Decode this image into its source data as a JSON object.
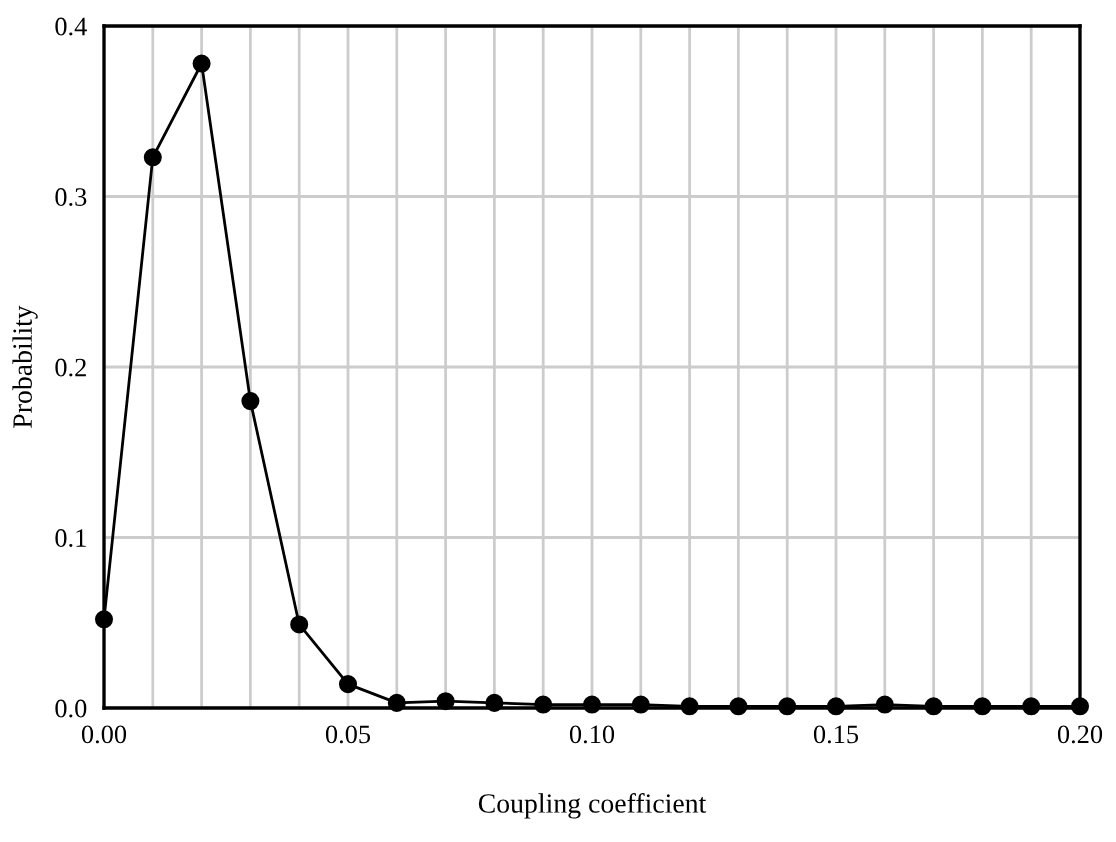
{
  "chart_data": {
    "type": "line",
    "xlabel": "Coupling coefficient",
    "ylabel": "Probability",
    "x": [
      0.0,
      0.01,
      0.02,
      0.03,
      0.04,
      0.05,
      0.06,
      0.07,
      0.08,
      0.09,
      0.1,
      0.11,
      0.12,
      0.13,
      0.14,
      0.15,
      0.16,
      0.17,
      0.18,
      0.19,
      0.2
    ],
    "series": [
      {
        "color": "#000000",
        "values": [
          0.052,
          0.323,
          0.378,
          0.18,
          0.049,
          0.014,
          0.003,
          0.004,
          0.003,
          0.002,
          0.002,
          0.002,
          0.001,
          0.001,
          0.001,
          0.001,
          0.002,
          0.001,
          0.001,
          0.001,
          0.001
        ]
      }
    ],
    "xlim": [
      0,
      0.2
    ],
    "xticks": [
      {
        "value": 0,
        "label": "0.00"
      },
      {
        "value": 0.01,
        "label": null
      },
      {
        "value": 0.02,
        "label": null
      },
      {
        "value": 0.03,
        "label": null
      },
      {
        "value": 0.04,
        "label": null
      },
      {
        "value": 0.05,
        "label": "0.05"
      },
      {
        "value": 0.06,
        "label": null
      },
      {
        "value": 0.07,
        "label": null
      },
      {
        "value": 0.08,
        "label": null
      },
      {
        "value": 0.09,
        "label": null
      },
      {
        "value": 0.1,
        "label": "0.10"
      },
      {
        "value": 0.11,
        "label": null
      },
      {
        "value": 0.12,
        "label": null
      },
      {
        "value": 0.13,
        "label": null
      },
      {
        "value": 0.14,
        "label": null
      },
      {
        "value": 0.15,
        "label": "0.15"
      },
      {
        "value": 0.16,
        "label": null
      },
      {
        "value": 0.17,
        "label": null
      },
      {
        "value": 0.18,
        "label": null
      },
      {
        "value": 0.19,
        "label": null
      },
      {
        "value": 0.2,
        "label": "0.20"
      }
    ],
    "ylim": [
      0,
      0.4
    ],
    "yticks": [
      {
        "value": 0,
        "label": "0.0"
      },
      {
        "value": 0.1,
        "label": "0.1"
      },
      {
        "value": 0.2,
        "label": "0.2"
      },
      {
        "value": 0.3,
        "label": "0.3"
      },
      {
        "value": 0.4,
        "label": "0.4"
      }
    ],
    "grid": true,
    "marker": "circle",
    "line_style": "solid"
  }
}
